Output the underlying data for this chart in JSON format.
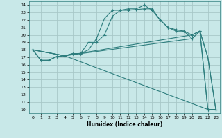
{
  "xlabel": "Humidex (Indice chaleur)",
  "bg_color": "#c8e8e8",
  "line_color": "#2d7d7d",
  "grid_color": "#b0d0d0",
  "xlim": [
    -0.5,
    23.5
  ],
  "ylim": [
    9.5,
    24.5
  ],
  "xticks": [
    0,
    1,
    2,
    3,
    4,
    5,
    6,
    7,
    8,
    9,
    10,
    11,
    12,
    13,
    14,
    15,
    16,
    17,
    18,
    19,
    20,
    21,
    22,
    23
  ],
  "yticks": [
    10,
    11,
    12,
    13,
    14,
    15,
    16,
    17,
    18,
    19,
    20,
    21,
    22,
    23,
    24
  ],
  "line1_x": [
    0,
    1,
    2,
    3,
    4,
    5,
    6,
    7,
    8,
    9,
    10,
    11,
    12,
    13,
    14,
    15,
    16,
    17,
    18,
    19,
    20,
    21,
    22,
    23
  ],
  "line1_y": [
    18.0,
    16.6,
    16.6,
    17.1,
    17.2,
    17.5,
    17.5,
    18.0,
    19.5,
    22.2,
    23.3,
    23.3,
    23.3,
    23.4,
    23.5,
    23.5,
    22.0,
    21.0,
    20.7,
    20.5,
    19.5,
    20.5,
    10.0,
    10.0
  ],
  "line2_x": [
    0,
    1,
    2,
    3,
    4,
    5,
    6,
    7,
    8,
    9,
    10,
    11,
    12,
    13,
    14,
    15,
    16,
    17,
    18,
    19,
    20,
    21,
    22,
    23
  ],
  "line2_y": [
    18.0,
    16.6,
    16.6,
    17.1,
    17.2,
    17.5,
    17.5,
    19.0,
    19.0,
    20.0,
    22.5,
    23.3,
    23.5,
    23.5,
    24.0,
    23.3,
    22.0,
    21.0,
    20.5,
    20.5,
    20.0,
    20.5,
    10.0,
    10.0
  ],
  "line3_x": [
    0,
    4,
    22,
    23
  ],
  "line3_y": [
    18.0,
    17.2,
    10.0,
    10.0
  ],
  "line4_x": [
    0,
    4,
    20,
    21,
    22,
    23
  ],
  "line4_y": [
    18.0,
    17.2,
    19.5,
    20.5,
    17.0,
    10.0
  ],
  "line5_x": [
    0,
    4,
    20,
    21,
    22,
    23
  ],
  "line5_y": [
    18.0,
    17.2,
    20.0,
    20.5,
    17.0,
    10.0
  ]
}
